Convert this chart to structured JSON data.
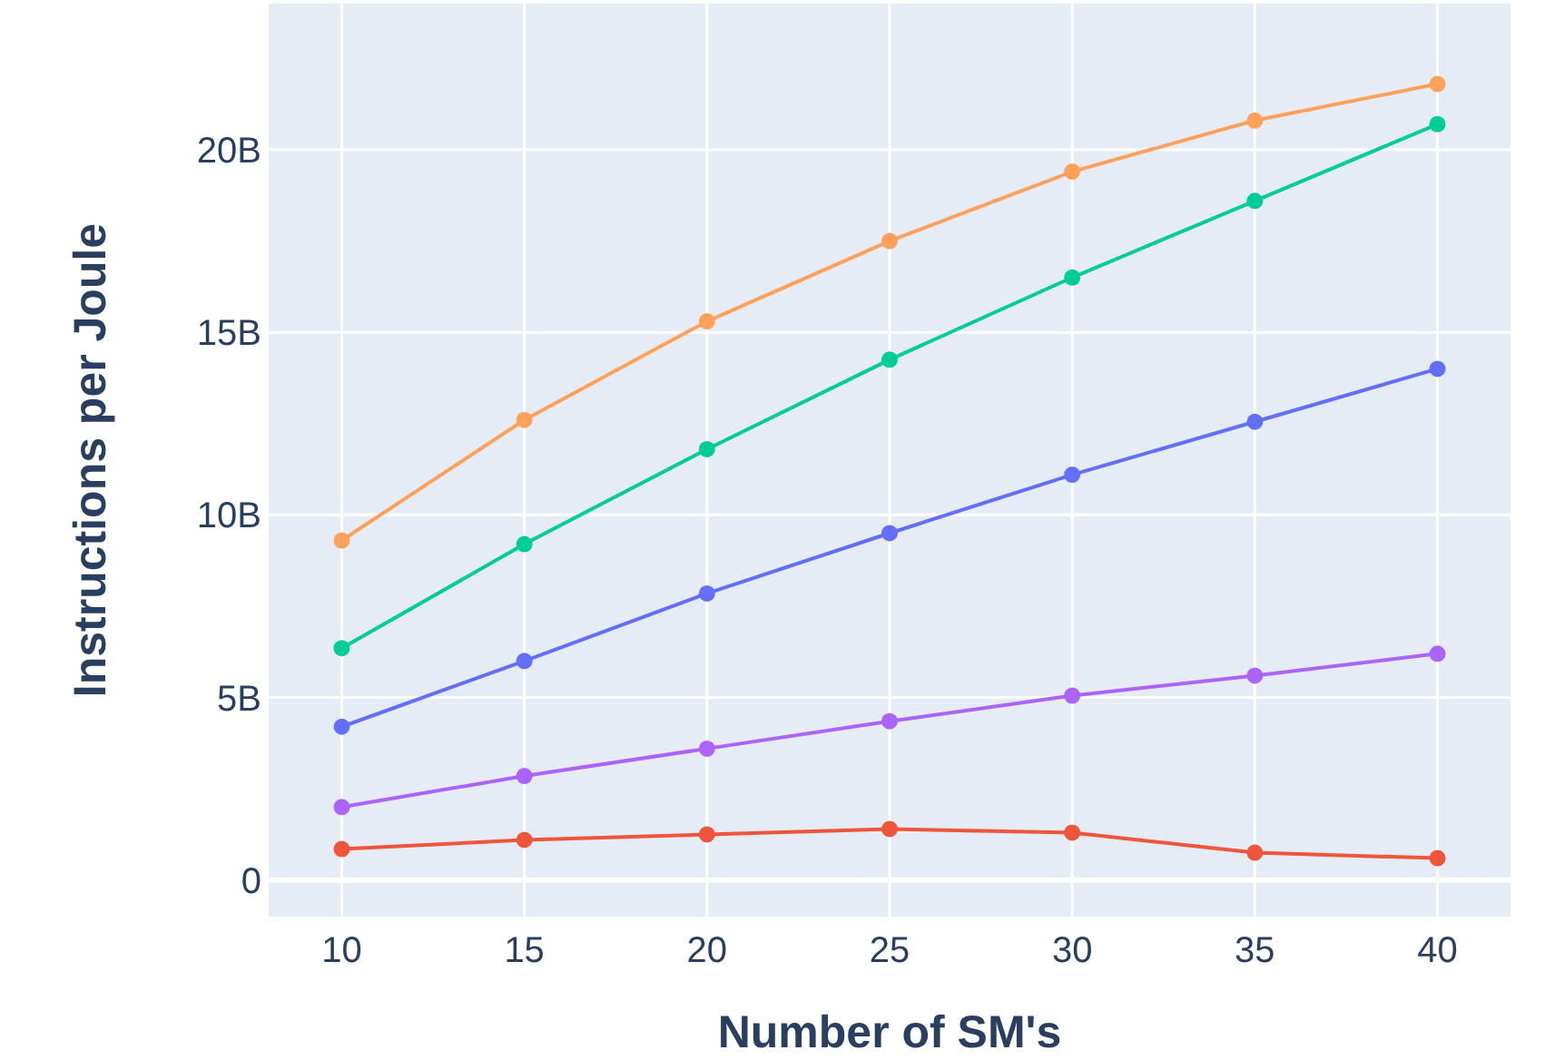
{
  "chart_data": {
    "type": "line",
    "xlabel": "Number of SM's",
    "ylabel": "Instructions per Joule",
    "x": [
      10,
      15,
      20,
      25,
      30,
      35,
      40
    ],
    "series": [
      {
        "color": "#ffa15a",
        "values": [
          9.3,
          12.6,
          15.3,
          17.5,
          19.4,
          20.8,
          21.8
        ]
      },
      {
        "color": "#00cc96",
        "values": [
          6.35,
          9.2,
          11.8,
          14.25,
          16.5,
          18.6,
          20.7
        ]
      },
      {
        "color": "#636efa",
        "values": [
          4.2,
          6.0,
          7.85,
          9.5,
          11.1,
          12.55,
          14.0
        ]
      },
      {
        "color": "#ab63fa",
        "values": [
          2.0,
          2.85,
          3.6,
          4.35,
          5.05,
          5.6,
          6.2
        ]
      },
      {
        "color": "#ef553b",
        "values": [
          0.85,
          1.1,
          1.25,
          1.4,
          1.3,
          0.75,
          0.6
        ]
      }
    ],
    "xlim": [
      8,
      42
    ],
    "ylim": [
      -1,
      24
    ],
    "xticks": [
      10,
      15,
      20,
      25,
      30,
      35,
      40
    ],
    "yticks": [
      0,
      {
        "value": 5,
        "label": "5B"
      },
      {
        "value": 10,
        "label": "10B"
      },
      {
        "value": 15,
        "label": "15B"
      },
      {
        "value": 20,
        "label": "20B"
      }
    ],
    "grid": true,
    "marker": "circle",
    "line_style": "solid"
  }
}
